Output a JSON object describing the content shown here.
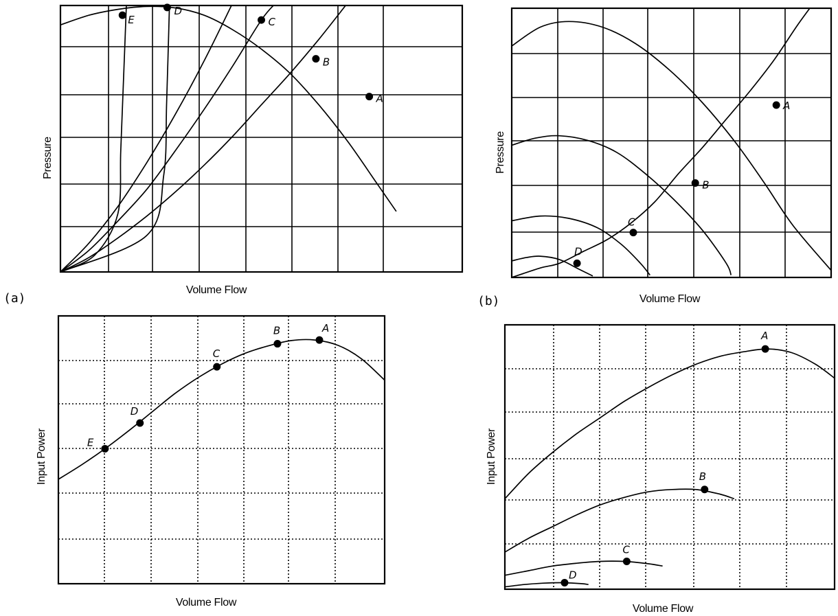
{
  "chart_data": [
    {
      "panel": "(a)",
      "type": "line",
      "xlabel": "Volume Flow",
      "ylabel": "Pressure",
      "xlim": [
        0,
        7
      ],
      "ylim": [
        0,
        5.5
      ],
      "grid": "solid",
      "x_ticks_count": 7,
      "y_ticks_count": 5.5,
      "series": [
        {
          "role": "fan-curve",
          "points": [
            [
              0,
              5.1
            ],
            [
              0.5,
              5.3
            ],
            [
              1.0,
              5.42
            ],
            [
              1.5,
              5.48
            ],
            [
              2.0,
              5.45
            ],
            [
              2.5,
              5.3
            ],
            [
              3.0,
              5.0
            ],
            [
              3.5,
              4.6
            ],
            [
              4.0,
              4.1
            ],
            [
              4.5,
              3.45
            ],
            [
              5.0,
              2.7
            ],
            [
              5.5,
              1.85
            ],
            [
              5.85,
              1.25
            ]
          ]
        },
        {
          "role": "system-curve",
          "points": [
            [
              0,
              0
            ],
            [
              0.5,
              0.6
            ],
            [
              1.0,
              1.35
            ],
            [
              1.5,
              2.25
            ],
            [
              2.0,
              3.25
            ],
            [
              2.5,
              4.35
            ],
            [
              3.0,
              5.55
            ]
          ]
        },
        {
          "role": "system-curve",
          "points": [
            [
              0,
              0
            ],
            [
              0.5,
              0.45
            ],
            [
              1.0,
              1.05
            ],
            [
              1.5,
              1.7
            ],
            [
              2.0,
              2.5
            ],
            [
              2.5,
              3.35
            ],
            [
              3.0,
              4.25
            ],
            [
              3.5,
              5.2
            ],
            [
              3.75,
              5.55
            ]
          ]
        },
        {
          "role": "system-curve",
          "points": [
            [
              0,
              0
            ],
            [
              0.5,
              0.3
            ],
            [
              1.0,
              0.7
            ],
            [
              1.5,
              1.15
            ],
            [
              2.0,
              1.65
            ],
            [
              2.5,
              2.2
            ],
            [
              3.0,
              2.8
            ],
            [
              3.5,
              3.45
            ],
            [
              4.0,
              4.1
            ],
            [
              4.5,
              4.8
            ],
            [
              5.0,
              5.55
            ]
          ]
        },
        {
          "role": "system-curve",
          "points": [
            [
              0,
              0
            ],
            [
              0.6,
              0.35
            ],
            [
              1.0,
              1.2
            ],
            [
              1.05,
              2.5
            ],
            [
              1.1,
              4.0
            ],
            [
              1.15,
              5.55
            ]
          ]
        },
        {
          "role": "system-curve",
          "points": [
            [
              0,
              0
            ],
            [
              1.5,
              0.75
            ],
            [
              1.8,
              2.0
            ],
            [
              1.85,
              3.5
            ],
            [
              1.9,
              5.55
            ]
          ]
        }
      ],
      "operating_points": [
        {
          "label": "E",
          "x": 1.08,
          "y": 5.3
        },
        {
          "label": "D",
          "x": 1.86,
          "y": 5.46
        },
        {
          "label": "C",
          "x": 3.5,
          "y": 5.2
        },
        {
          "label": "B",
          "x": 4.45,
          "y": 4.4
        },
        {
          "label": "A",
          "x": 5.38,
          "y": 3.62
        }
      ]
    },
    {
      "panel": "(b)",
      "type": "line",
      "xlabel": "Volume Flow",
      "ylabel": "Pressure",
      "xlim": [
        0,
        6.7
      ],
      "ylim": [
        0,
        5.7
      ],
      "grid": "solid",
      "x_ticks_count": 6.7,
      "y_ticks_count": 5.7,
      "series": [
        {
          "role": "fan-curve",
          "points": [
            [
              0,
              4.9
            ],
            [
              0.6,
              5.3
            ],
            [
              1.2,
              5.42
            ],
            [
              1.9,
              5.3
            ],
            [
              2.6,
              4.95
            ],
            [
              3.3,
              4.4
            ],
            [
              4.0,
              3.7
            ],
            [
              4.7,
              2.85
            ],
            [
              5.3,
              2.0
            ],
            [
              5.9,
              1.1
            ],
            [
              6.7,
              0.15
            ]
          ]
        },
        {
          "role": "fan-curve",
          "points": [
            [
              0,
              2.8
            ],
            [
              0.5,
              2.95
            ],
            [
              1.0,
              3.0
            ],
            [
              1.6,
              2.9
            ],
            [
              2.2,
              2.65
            ],
            [
              2.8,
              2.2
            ],
            [
              3.4,
              1.65
            ],
            [
              4.0,
              1.0
            ],
            [
              4.5,
              0.3
            ],
            [
              4.6,
              0.05
            ]
          ]
        },
        {
          "role": "fan-curve",
          "points": [
            [
              0,
              1.2
            ],
            [
              0.6,
              1.3
            ],
            [
              1.2,
              1.25
            ],
            [
              1.8,
              1.05
            ],
            [
              2.3,
              0.7
            ],
            [
              2.7,
              0.3
            ],
            [
              2.9,
              0.05
            ]
          ]
        },
        {
          "role": "fan-curve",
          "points": [
            [
              0,
              0.35
            ],
            [
              0.3,
              0.42
            ],
            [
              0.6,
              0.45
            ],
            [
              1.0,
              0.38
            ],
            [
              1.4,
              0.18
            ],
            [
              1.7,
              0.03
            ]
          ]
        },
        {
          "role": "system-curve",
          "points": [
            [
              0,
              0
            ],
            [
              0.6,
              0.2
            ],
            [
              1.0,
              0.3
            ],
            [
              1.5,
              0.55
            ],
            [
              2.0,
              0.8
            ],
            [
              2.5,
              1.15
            ],
            [
              3.0,
              1.6
            ],
            [
              3.5,
              2.2
            ],
            [
              4.0,
              2.75
            ],
            [
              4.5,
              3.35
            ],
            [
              5.0,
              3.95
            ],
            [
              5.5,
              4.6
            ],
            [
              6.0,
              5.35
            ],
            [
              6.4,
              5.9
            ]
          ]
        }
      ],
      "operating_points": [
        {
          "label": "A",
          "x": 5.55,
          "y": 3.65
        },
        {
          "label": "B",
          "x": 3.85,
          "y": 2.0
        },
        {
          "label": "C",
          "x": 2.55,
          "y": 0.95
        },
        {
          "label": "D",
          "x": 1.37,
          "y": 0.3
        }
      ]
    },
    {
      "panel": "(a)",
      "type": "line",
      "xlabel": "Volume Flow",
      "ylabel": "Input Power",
      "xlim": [
        0,
        7
      ],
      "ylim": [
        0,
        5
      ],
      "grid": "dotted",
      "series": [
        {
          "role": "power-curve",
          "points": [
            [
              0,
              1.95
            ],
            [
              0.5,
              2.22
            ],
            [
              1.0,
              2.52
            ],
            [
              1.5,
              2.85
            ],
            [
              2.0,
              3.2
            ],
            [
              2.5,
              3.55
            ],
            [
              3.0,
              3.85
            ],
            [
              3.5,
              4.1
            ],
            [
              4.0,
              4.3
            ],
            [
              4.5,
              4.44
            ],
            [
              5.0,
              4.54
            ],
            [
              5.5,
              4.55
            ],
            [
              6.0,
              4.45
            ],
            [
              6.5,
              4.2
            ],
            [
              7.0,
              3.8
            ]
          ]
        }
      ],
      "operating_points": [
        {
          "label": "E",
          "x": 1.0,
          "y": 2.52
        },
        {
          "label": "D",
          "x": 1.75,
          "y": 3.0
        },
        {
          "label": "C",
          "x": 3.4,
          "y": 4.05
        },
        {
          "label": "B",
          "x": 4.7,
          "y": 4.48
        },
        {
          "label": "A",
          "x": 5.6,
          "y": 4.55
        }
      ]
    },
    {
      "panel": "(b)",
      "type": "line",
      "xlabel": "Volume Flow",
      "ylabel": "Input Power",
      "xlim": [
        0,
        6.9
      ],
      "ylim": [
        0,
        5.7
      ],
      "grid": "dotted",
      "series": [
        {
          "role": "power-curve",
          "points": [
            [
              0,
              1.95
            ],
            [
              0.5,
              2.5
            ],
            [
              1.0,
              2.95
            ],
            [
              1.5,
              3.35
            ],
            [
              2.0,
              3.7
            ],
            [
              2.5,
              4.05
            ],
            [
              3.0,
              4.35
            ],
            [
              3.5,
              4.62
            ],
            [
              4.0,
              4.85
            ],
            [
              4.5,
              5.02
            ],
            [
              5.0,
              5.12
            ],
            [
              5.5,
              5.18
            ],
            [
              6.0,
              5.1
            ],
            [
              6.5,
              4.85
            ],
            [
              6.9,
              4.55
            ]
          ]
        },
        {
          "role": "power-curve",
          "points": [
            [
              0,
              0.8
            ],
            [
              0.5,
              1.1
            ],
            [
              1.0,
              1.35
            ],
            [
              1.5,
              1.6
            ],
            [
              2.0,
              1.82
            ],
            [
              2.5,
              1.98
            ],
            [
              3.0,
              2.1
            ],
            [
              3.5,
              2.15
            ],
            [
              4.0,
              2.15
            ],
            [
              4.5,
              2.05
            ],
            [
              4.8,
              1.95
            ]
          ]
        },
        {
          "role": "power-curve",
          "points": [
            [
              0,
              0.3
            ],
            [
              0.5,
              0.4
            ],
            [
              1.0,
              0.5
            ],
            [
              1.5,
              0.56
            ],
            [
              2.0,
              0.6
            ],
            [
              2.5,
              0.6
            ],
            [
              3.0,
              0.55
            ],
            [
              3.3,
              0.5
            ]
          ]
        },
        {
          "role": "power-curve",
          "points": [
            [
              0,
              0.05
            ],
            [
              0.4,
              0.1
            ],
            [
              0.8,
              0.13
            ],
            [
              1.2,
              0.14
            ],
            [
              1.6,
              0.12
            ],
            [
              1.75,
              0.1
            ]
          ]
        }
      ],
      "operating_points": [
        {
          "label": "A",
          "x": 5.45,
          "y": 5.18
        },
        {
          "label": "B",
          "x": 4.18,
          "y": 2.15
        },
        {
          "label": "C",
          "x": 2.55,
          "y": 0.6
        },
        {
          "label": "D",
          "x": 1.25,
          "y": 0.14
        }
      ]
    }
  ]
}
